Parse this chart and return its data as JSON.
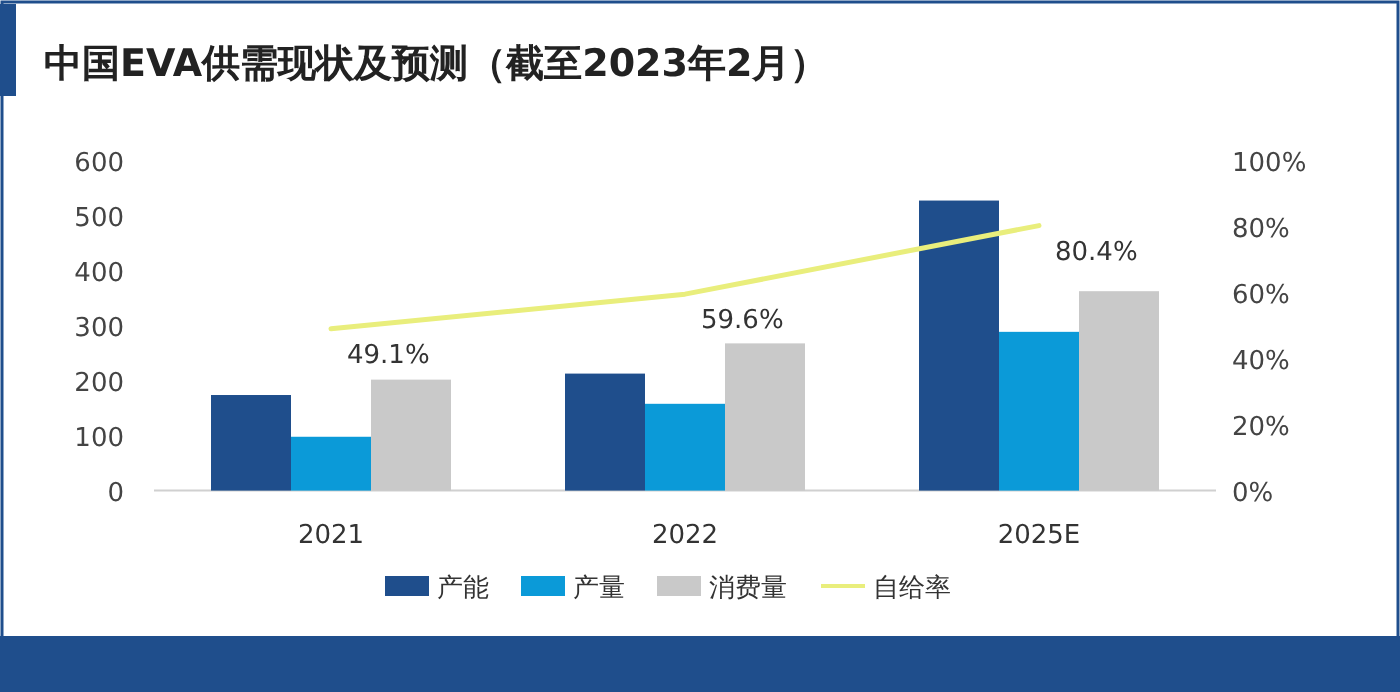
{
  "chart_data": {
    "type": "bar",
    "title": "中国EVA供需现状及预测（截至2023年2月）",
    "categories": [
      "2021",
      "2022",
      "2025E"
    ],
    "series": [
      {
        "name": "产能",
        "color": "#1f4e8c",
        "values": [
          174,
          213,
          528
        ]
      },
      {
        "name": "产量",
        "color": "#0b9ad8",
        "values": [
          98,
          158,
          289
        ]
      },
      {
        "name": "消费量",
        "color": "#c9c9c9",
        "values": [
          202,
          268,
          363
        ]
      },
      {
        "name": "自给率",
        "type": "line",
        "axis": "y2",
        "color": "#e9ee7c",
        "values": [
          49.1,
          59.6,
          80.4
        ],
        "value_labels": [
          "49.1%",
          "59.6%",
          "80.4%"
        ]
      }
    ],
    "ylim": [
      0,
      600
    ],
    "yticks": [
      0,
      100,
      200,
      300,
      400,
      500,
      600
    ],
    "y2lim": [
      0,
      100
    ],
    "y2ticks": [
      {
        "value": 0,
        "label": "0%"
      },
      {
        "value": 20,
        "label": "20%"
      },
      {
        "value": 40,
        "label": "40%"
      },
      {
        "value": 60,
        "label": "60%"
      },
      {
        "value": 80,
        "label": "80%"
      },
      {
        "value": 100,
        "label": "100%"
      }
    ],
    "grid": false,
    "legend": "bottom"
  }
}
